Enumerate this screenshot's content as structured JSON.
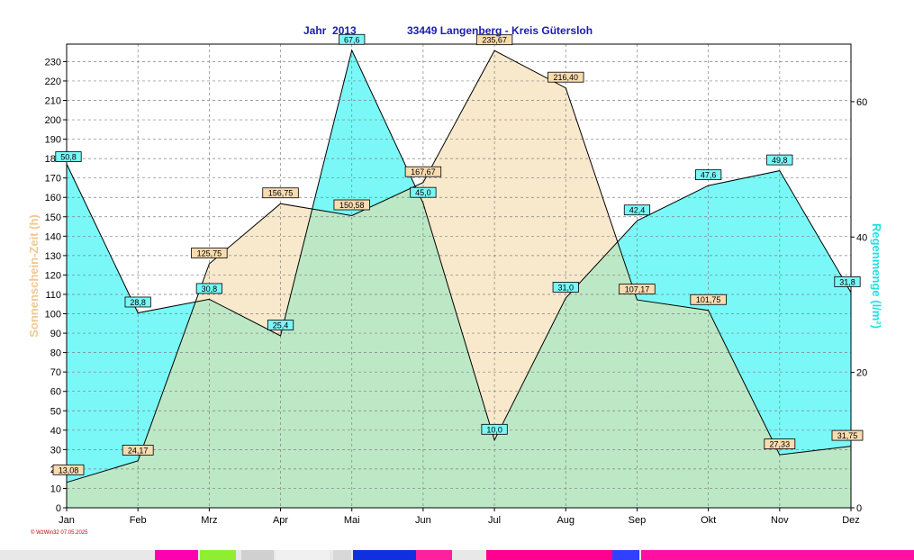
{
  "header": {
    "year_label": "Jahr  2013",
    "location": "33449 Langenberg - Kreis Gütersloh"
  },
  "footer": {
    "credit": "© WzWin32  07.05.2025"
  },
  "colors": {
    "sunshine_fill": "#f8e9cc",
    "rain_fill": "#7af8f8",
    "overlap_fill": "#bde8c6",
    "sunshine_label": "#f0c890",
    "rain_label": "#22e0e0",
    "title": "#1b1bb0"
  },
  "chart_data": {
    "type": "area",
    "categories": [
      "Jan",
      "Feb",
      "Mrz",
      "Apr",
      "Mai",
      "Jun",
      "Jul",
      "Aug",
      "Sep",
      "Okt",
      "Nov",
      "Dez"
    ],
    "title": "Jahr  2013            33449 Langenberg - Kreis Gütersloh",
    "grid": true,
    "legend": "none",
    "series": [
      {
        "name": "Sonnenschein-Zeit (h)",
        "axis": "left",
        "values": [
          13.08,
          24.17,
          125.75,
          156.75,
          150.58,
          167.67,
          235.67,
          216.4,
          107.17,
          101.75,
          27.33,
          31.75
        ],
        "labels": [
          "13,08",
          "24,17",
          "125,75",
          "156,75",
          "150,58",
          "167,67",
          "235,67",
          "216,40",
          "107,17",
          "101,75",
          "27,33",
          "31,75"
        ]
      },
      {
        "name": "Regenmenge (l/m²)",
        "axis": "right",
        "values": [
          50.8,
          28.8,
          30.8,
          25.4,
          67.6,
          45.0,
          10.0,
          31.0,
          42.4,
          47.6,
          49.8,
          31.8
        ],
        "labels": [
          "50,8",
          "28,8",
          "30,8",
          "25,4",
          "67,6",
          "45,0",
          "10,0",
          "31,0",
          "42,4",
          "47,6",
          "49,8",
          "31,8"
        ]
      }
    ],
    "left_axis": {
      "label": "Sonnenschein-Zeit  (h)",
      "min": 0,
      "max": 239,
      "ticks": [
        0,
        10,
        20,
        30,
        40,
        50,
        60,
        70,
        80,
        90,
        100,
        110,
        120,
        130,
        140,
        150,
        160,
        170,
        180,
        190,
        200,
        210,
        220,
        230
      ]
    },
    "right_axis": {
      "label": "Regenmenge  (l/m²)",
      "min": 0,
      "max": 68.5,
      "ticks": [
        0,
        20,
        40,
        60
      ]
    }
  }
}
